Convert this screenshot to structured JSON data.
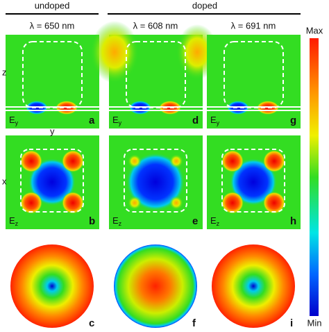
{
  "header": {
    "groups": [
      "undoped",
      "doped"
    ],
    "wavelengths": [
      "λ = 650 nm",
      "λ = 608 nm",
      "λ = 691 nm"
    ]
  },
  "axes": {
    "z": "z",
    "y": "y",
    "x": "x"
  },
  "colorbar": {
    "max": "Max",
    "min": "Min"
  },
  "panels": [
    {
      "label": "a",
      "field": "E",
      "component": "y"
    },
    {
      "label": "d",
      "field": "E",
      "component": "y"
    },
    {
      "label": "g",
      "field": "E",
      "component": "y"
    },
    {
      "label": "b",
      "field": "E",
      "component": "z"
    },
    {
      "label": "e",
      "field": "E",
      "component": "z"
    },
    {
      "label": "h",
      "field": "E",
      "component": "z"
    },
    {
      "label": "c"
    },
    {
      "label": "f"
    },
    {
      "label": "i"
    }
  ]
}
